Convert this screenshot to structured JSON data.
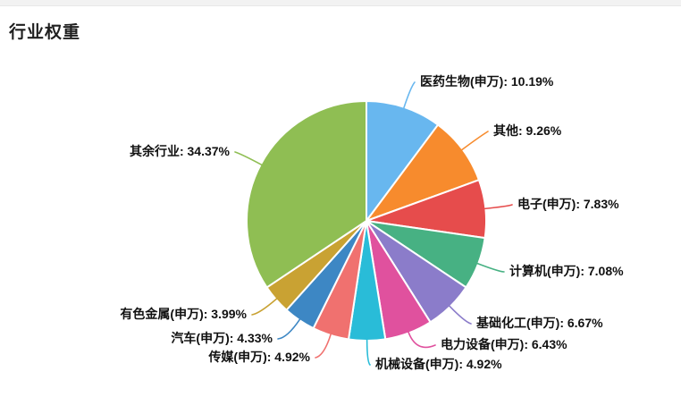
{
  "header": {
    "title": "行业权重"
  },
  "chart_data": {
    "type": "pie",
    "title": "行业权重",
    "unit": "%",
    "label_position": "outside",
    "label_format": "{name}: {value}%",
    "start_angle": "top",
    "direction": "clockwise",
    "slice_border_color": "#ffffff",
    "slices": [
      {
        "name": "医药生物(申万)",
        "value": 10.19,
        "label": "医药生物(申万): 10.19%",
        "color": "#68b7ef"
      },
      {
        "name": "其他",
        "value": 9.26,
        "label": "其他: 9.26%",
        "color": "#f78b2d"
      },
      {
        "name": "电子(申万)",
        "value": 7.83,
        "label": "电子(申万): 7.83%",
        "color": "#e64c4c"
      },
      {
        "name": "计算机(申万)",
        "value": 7.08,
        "label": "计算机(申万): 7.08%",
        "color": "#47b183"
      },
      {
        "name": "基础化工(申万)",
        "value": 6.67,
        "label": "基础化工(申万): 6.67%",
        "color": "#8b7cca"
      },
      {
        "name": "电力设备(申万)",
        "value": 6.43,
        "label": "电力设备(申万): 6.43%",
        "color": "#e0519e"
      },
      {
        "name": "机械设备(申万)",
        "value": 4.92,
        "label": "机械设备(申万): 4.92%",
        "color": "#29bcd8"
      },
      {
        "name": "传媒(申万)",
        "value": 4.92,
        "label": "传媒(申万): 4.92%",
        "color": "#f0716f"
      },
      {
        "name": "汽车(申万)",
        "value": 4.33,
        "label": "汽车(申万): 4.33%",
        "color": "#3d87c4"
      },
      {
        "name": "有色金属(申万)",
        "value": 3.99,
        "label": "有色金属(申万): 3.99%",
        "color": "#c9a233"
      },
      {
        "name": "其余行业",
        "value": 34.37,
        "label": "其余行业: 34.37%",
        "color": "#8fbe53"
      }
    ]
  }
}
